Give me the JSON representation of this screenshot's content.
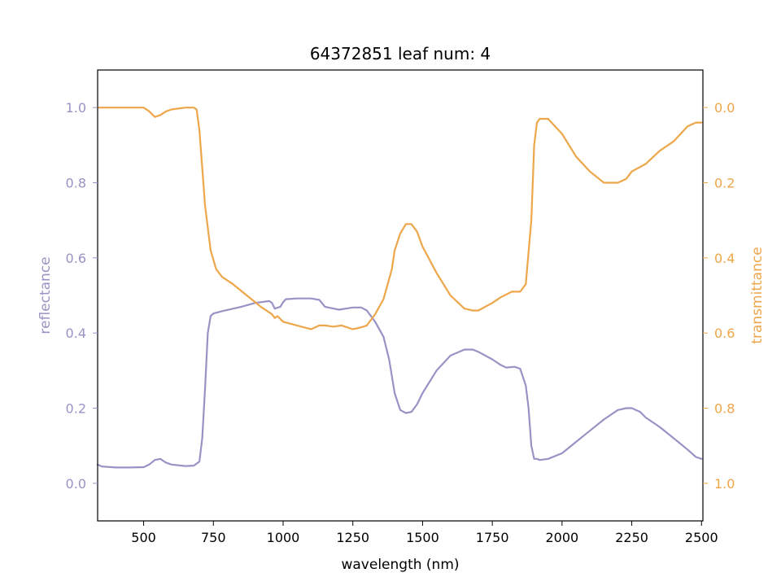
{
  "chart_data": {
    "type": "line",
    "title": "64372851 leaf num: 4",
    "xlabel": "wavelength (nm)",
    "xlim": [
      335,
      2505
    ],
    "xticks": [
      500,
      750,
      1000,
      1250,
      1500,
      1750,
      2000,
      2250,
      2500
    ],
    "left_axis": {
      "label": "reflectance",
      "color": "#9993c5",
      "ylim": [
        -0.1,
        1.1
      ],
      "ticks": [
        "0.0",
        "0.2",
        "0.4",
        "0.6",
        "0.8",
        "1.0"
      ],
      "tick_values": [
        0.0,
        0.2,
        0.4,
        0.6,
        0.8,
        1.0
      ]
    },
    "right_axis": {
      "label": "transmittance",
      "color": "#eda64a",
      "inverted": true,
      "ylim": [
        1.1,
        -0.1
      ],
      "ticks": [
        "0.0",
        "0.2",
        "0.4",
        "0.6",
        "0.8",
        "1.0"
      ],
      "tick_values": [
        0.0,
        0.2,
        0.4,
        0.6,
        0.8,
        1.0
      ]
    },
    "series": [
      {
        "axis": "left",
        "color": "#9993c5",
        "x": [
          335,
          350,
          400,
          450,
          500,
          520,
          540,
          560,
          580,
          600,
          650,
          680,
          700,
          710,
          720,
          730,
          740,
          750,
          780,
          850,
          900,
          950,
          960,
          970,
          990,
          1000,
          1010,
          1050,
          1100,
          1130,
          1150,
          1200,
          1250,
          1280,
          1300,
          1330,
          1360,
          1380,
          1400,
          1420,
          1440,
          1460,
          1480,
          1500,
          1550,
          1600,
          1650,
          1680,
          1700,
          1750,
          1780,
          1800,
          1830,
          1850,
          1870,
          1880,
          1890,
          1900,
          1910,
          1920,
          1950,
          2000,
          2050,
          2100,
          2150,
          2200,
          2230,
          2250,
          2280,
          2300,
          2350,
          2400,
          2450,
          2480,
          2500
        ],
        "y": [
          0.05,
          0.045,
          0.042,
          0.042,
          0.043,
          0.05,
          0.062,
          0.065,
          0.055,
          0.05,
          0.046,
          0.047,
          0.058,
          0.12,
          0.25,
          0.4,
          0.445,
          0.452,
          0.458,
          0.47,
          0.48,
          0.485,
          0.48,
          0.465,
          0.47,
          0.482,
          0.49,
          0.492,
          0.492,
          0.488,
          0.47,
          0.462,
          0.468,
          0.468,
          0.46,
          0.43,
          0.39,
          0.33,
          0.24,
          0.195,
          0.187,
          0.19,
          0.21,
          0.24,
          0.3,
          0.34,
          0.356,
          0.356,
          0.35,
          0.33,
          0.315,
          0.308,
          0.31,
          0.305,
          0.26,
          0.2,
          0.1,
          0.065,
          0.065,
          0.062,
          0.065,
          0.08,
          0.11,
          0.14,
          0.17,
          0.195,
          0.2,
          0.2,
          0.19,
          0.175,
          0.15,
          0.12,
          0.09,
          0.07,
          0.065
        ]
      },
      {
        "axis": "right",
        "color": "#eda64a",
        "x": [
          335,
          350,
          400,
          450,
          500,
          520,
          540,
          560,
          580,
          600,
          650,
          680,
          690,
          700,
          710,
          720,
          740,
          760,
          780,
          820,
          870,
          920,
          960,
          970,
          980,
          1000,
          1050,
          1100,
          1130,
          1150,
          1180,
          1210,
          1250,
          1280,
          1300,
          1330,
          1360,
          1390,
          1400,
          1420,
          1440,
          1460,
          1480,
          1500,
          1550,
          1600,
          1650,
          1680,
          1700,
          1750,
          1780,
          1820,
          1850,
          1870,
          1890,
          1900,
          1910,
          1920,
          1950,
          2000,
          2050,
          2100,
          2150,
          2200,
          2230,
          2250,
          2300,
          2350,
          2400,
          2450,
          2480,
          2500
        ],
        "y": [
          0.0,
          0.0,
          0.0,
          0.0,
          0.0,
          0.01,
          0.025,
          0.02,
          0.01,
          0.005,
          0.0,
          0.0,
          0.005,
          0.06,
          0.16,
          0.26,
          0.38,
          0.43,
          0.45,
          0.47,
          0.5,
          0.53,
          0.55,
          0.56,
          0.555,
          0.57,
          0.58,
          0.59,
          0.58,
          0.58,
          0.583,
          0.58,
          0.59,
          0.585,
          0.58,
          0.55,
          0.51,
          0.43,
          0.38,
          0.335,
          0.31,
          0.31,
          0.33,
          0.37,
          0.44,
          0.5,
          0.535,
          0.54,
          0.54,
          0.52,
          0.505,
          0.49,
          0.49,
          0.47,
          0.3,
          0.1,
          0.04,
          0.03,
          0.03,
          0.07,
          0.13,
          0.17,
          0.2,
          0.2,
          0.19,
          0.17,
          0.15,
          0.115,
          0.09,
          0.05,
          0.04,
          0.04
        ]
      }
    ]
  }
}
